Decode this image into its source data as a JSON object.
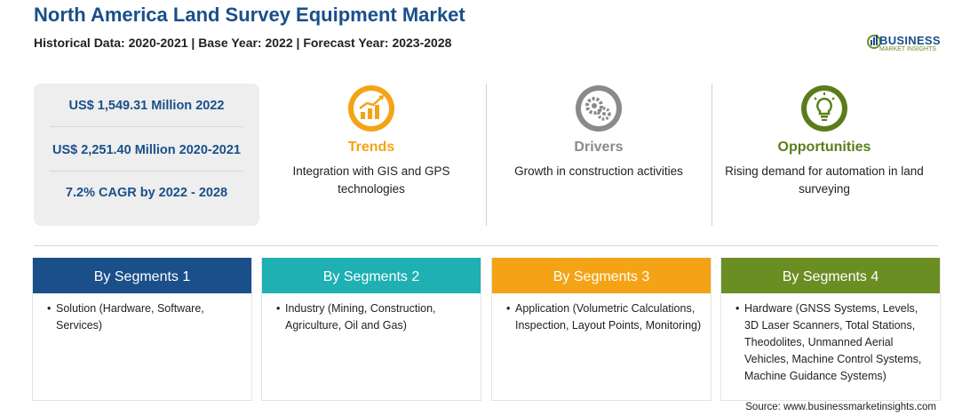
{
  "header": {
    "title": "North America Land Survey Equipment Market",
    "subtitle": "Historical Data: 2020-2021 | Base Year: 2022 | Forecast Year: 2023-2028"
  },
  "logo": {
    "name": "BUSINESS",
    "tagline": "MARKET INSIGHTS"
  },
  "stats": [
    "US$ 1,549.31 Million 2022",
    "US$ 2,251.40 Million 2020-2021",
    "7.2% CAGR by 2022 - 2028"
  ],
  "features": [
    {
      "label": "Trends",
      "desc": "Integration with GIS and GPS technologies",
      "color": "#f5a316",
      "icon": "trend-chart-icon"
    },
    {
      "label": "Drivers",
      "desc": "Growth in construction activities",
      "color": "#8a8a8a",
      "icon": "gears-icon"
    },
    {
      "label": "Opportunities",
      "desc": "Rising demand for automation in land surveying",
      "color": "#5a7d1a",
      "icon": "lightbulb-icon"
    }
  ],
  "segments": [
    {
      "title": "By Segments 1",
      "color": "#1a4f8a",
      "items": [
        "Solution (Hardware, Software, Services)"
      ]
    },
    {
      "title": "By Segments 2",
      "color": "#1eb0b3",
      "items": [
        "Industry (Mining, Construction, Agriculture, Oil and Gas)"
      ]
    },
    {
      "title": "By Segments 3",
      "color": "#f5a316",
      "items": [
        "Application (Volumetric Calculations, Inspection, Layout Points, Monitoring)"
      ]
    },
    {
      "title": "By Segments 4",
      "color": "#6b8e23",
      "items": [
        "Hardware (GNSS Systems, Levels, 3D Laser Scanners, Total Stations, Theodolites, Unmanned Aerial Vehicles, Machine Control Systems, Machine Guidance Systems)"
      ]
    }
  ],
  "source": "Source: www.businessmarketinsights.com"
}
